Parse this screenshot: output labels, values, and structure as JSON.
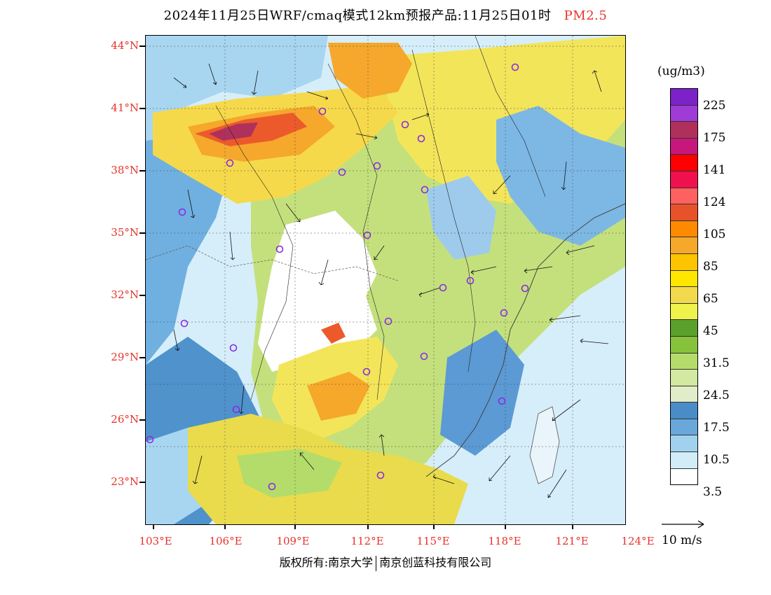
{
  "title": {
    "main": "2024年11月25日WRF/cmaq模式12km预报产品:11月25日01时",
    "variable": "PM2.5"
  },
  "colors": {
    "label_red": "#e8322a",
    "city_marker": "#8a2be2"
  },
  "latitude_labels": [
    "44°N",
    "41°N",
    "38°N",
    "35°N",
    "32°N",
    "29°N",
    "26°N",
    "23°N"
  ],
  "longitude_labels": [
    "103°E",
    "106°E",
    "109°E",
    "112°E",
    "115°E",
    "118°E",
    "121°E",
    "124°E"
  ],
  "legend": {
    "unit": "(ug/m3)",
    "labels": [
      "225",
      "175",
      "141",
      "124",
      "105",
      "85",
      "65",
      "45",
      "31.5",
      "24.5",
      "17.5",
      "10.5",
      "3.5"
    ],
    "colors": [
      "#7b22c9",
      "#9f3bd6",
      "#b0305c",
      "#c8177c",
      "#ff0000",
      "#f0104e",
      "#ff6060",
      "#e8522a",
      "#ff8a00",
      "#f6a82a",
      "#ffc400",
      "#ffe600",
      "#f2d84c",
      "#eef24a",
      "#5aa02a",
      "#86c23a",
      "#b4dc6a",
      "#d3e8a0",
      "#e2ecc8",
      "#4a8cc8",
      "#6aa8dc",
      "#a0d2f0",
      "#d2ecf8",
      "#ffffff"
    ]
  },
  "wind": {
    "reference_label": "10 m/s"
  },
  "footer": {
    "copyright": "版权所有:南京大学",
    "company": "南京创蓝科技有限公司"
  }
}
